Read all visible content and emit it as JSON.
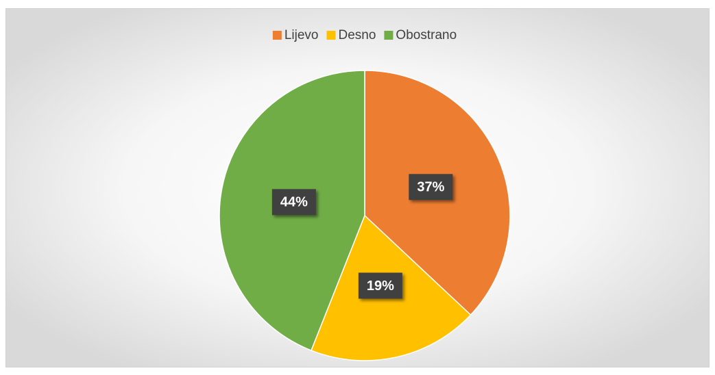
{
  "chart_data": {
    "type": "pie",
    "categories": [
      "Lijevo",
      "Desno",
      "Obostrano"
    ],
    "values": [
      37,
      19,
      44
    ],
    "value_labels": [
      "37%",
      "19%",
      "44%"
    ],
    "colors": [
      "#ED7D31",
      "#FFC000",
      "#70AD47"
    ],
    "legend": "top"
  }
}
